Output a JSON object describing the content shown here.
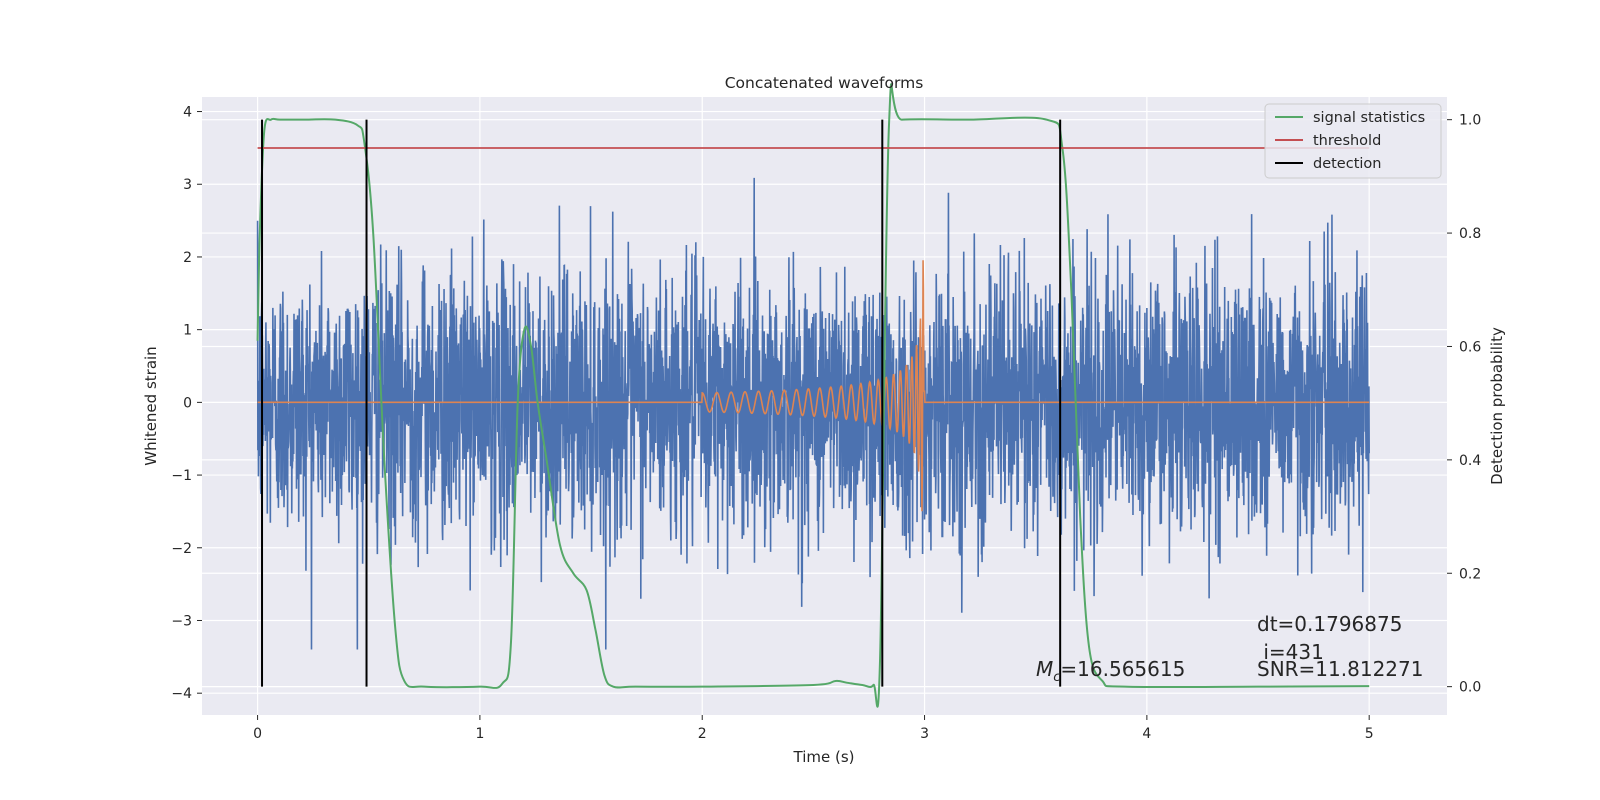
{
  "chart_data": {
    "type": "line",
    "title": "Concatenated waveforms",
    "xlabel": "Time (s)",
    "ylabel": "Whitened strain",
    "y2label": "Detection probability",
    "xlim": [
      -0.25,
      5.35
    ],
    "ylim": [
      -4.3,
      4.2
    ],
    "y2lim": [
      -0.05,
      1.04
    ],
    "xticks": [
      0,
      1,
      2,
      3,
      4,
      5
    ],
    "xtick_labels": [
      "0",
      "1",
      "2",
      "3",
      "4",
      "5"
    ],
    "yticks": [
      -4,
      -3,
      -2,
      -1,
      0,
      1,
      2,
      3,
      4
    ],
    "ytick_labels": [
      "−4",
      "−3",
      "−2",
      "−1",
      "0",
      "1",
      "2",
      "3",
      "4"
    ],
    "y2ticks": [
      0.0,
      0.2,
      0.4,
      0.6,
      0.8,
      1.0
    ],
    "y2tick_labels": [
      "0.0",
      "0.2",
      "0.4",
      "0.6",
      "0.8",
      "1.0"
    ],
    "grid": true,
    "legend_position": "top-right",
    "series": [
      {
        "key": "strain",
        "axis": "left",
        "color": "#4c72b0",
        "description_kind": "noise",
        "x_range": [
          0,
          5
        ],
        "amplitude_std": 0.9,
        "peak_range": [
          -3.4,
          3.4
        ]
      },
      {
        "key": "injected",
        "axis": "left",
        "color": "#dd8452",
        "x_range": [
          0,
          5
        ],
        "chirp": {
          "t_start": 2.0,
          "t_merger": 3.0,
          "amp_start": 0.13,
          "amp_peak": 2.2
        }
      },
      {
        "key": "signal_statistics",
        "name": "signal statistics",
        "axis": "right",
        "color": "#55a868",
        "x": [
          0.0,
          0.01,
          0.03,
          0.06,
          0.1,
          0.2,
          0.35,
          0.45,
          0.48,
          0.52,
          0.57,
          0.62,
          0.66,
          0.75,
          1.0,
          1.1,
          1.14,
          1.17,
          1.2,
          1.23,
          1.26,
          1.3,
          1.36,
          1.42,
          1.48,
          1.52,
          1.56,
          1.6,
          1.7,
          2.0,
          2.5,
          2.6,
          2.65,
          2.72,
          2.77,
          2.8,
          2.84,
          2.9,
          3.2,
          3.55,
          3.62,
          3.66,
          3.7,
          3.74,
          3.8,
          3.9,
          4.5,
          5.0
        ],
        "y": [
          0.61,
          0.8,
          0.98,
          1.0,
          1.0,
          1.0,
          1.0,
          0.99,
          0.96,
          0.8,
          0.4,
          0.1,
          0.01,
          0.0,
          0.0,
          0.005,
          0.08,
          0.5,
          0.63,
          0.6,
          0.5,
          0.4,
          0.25,
          0.2,
          0.17,
          0.1,
          0.02,
          0.0,
          0.0,
          0.0,
          0.003,
          0.01,
          0.007,
          0.003,
          0.003,
          0.05,
          0.99,
          1.0,
          1.0,
          1.0,
          0.95,
          0.7,
          0.3,
          0.07,
          0.01,
          0.0,
          0.0,
          0.001
        ]
      },
      {
        "key": "threshold",
        "name": "threshold",
        "axis": "right",
        "color": "#c44e52",
        "x": [
          0,
          5
        ],
        "y": [
          0.95,
          0.95
        ]
      },
      {
        "key": "detection",
        "name": "detection",
        "axis": "right",
        "color": "#000000",
        "vlines": [
          0.02,
          0.49,
          2.81,
          3.61
        ],
        "y_range": [
          0.0,
          1.0
        ]
      }
    ],
    "annotations": [
      {
        "key": "mc",
        "prefix": "M",
        "subscript": "c",
        "text": "=16.565615"
      },
      {
        "key": "dt",
        "text": "dt=0.1796875"
      },
      {
        "key": "i",
        "text": " i=431"
      },
      {
        "key": "snr",
        "text": "SNR=11.812271"
      }
    ],
    "colors": {
      "background": "#eaeaf2",
      "grid": "#ffffff",
      "text": "#262626"
    }
  }
}
